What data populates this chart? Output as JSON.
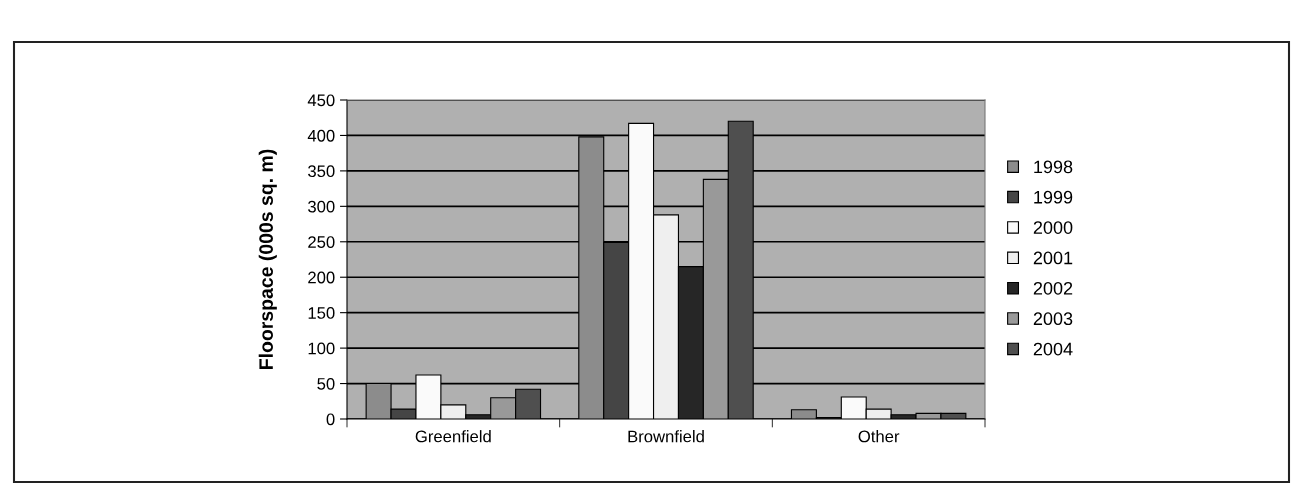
{
  "chart_data": {
    "type": "bar",
    "ylabel": "Floorspace (000s sq. m)",
    "categories": [
      "Greenfield",
      "Brownfield",
      "Other"
    ],
    "series": [
      {
        "name": "1998",
        "color": "#8c8c8c",
        "values": [
          50,
          398,
          13
        ]
      },
      {
        "name": "1999",
        "color": "#454545",
        "values": [
          14,
          249,
          2
        ]
      },
      {
        "name": "2000",
        "color": "#fafafa",
        "values": [
          62,
          417,
          31
        ]
      },
      {
        "name": "2001",
        "color": "#efefef",
        "values": [
          20,
          288,
          14
        ]
      },
      {
        "name": "2002",
        "color": "#262626",
        "values": [
          6,
          215,
          6
        ]
      },
      {
        "name": "2003",
        "color": "#999999",
        "values": [
          30,
          338,
          8
        ]
      },
      {
        "name": "2004",
        "color": "#4f4f4f",
        "values": [
          42,
          420,
          8
        ]
      }
    ],
    "ylim": [
      0,
      450
    ],
    "yticks": [
      0,
      50,
      100,
      150,
      200,
      250,
      300,
      350,
      400,
      450
    ],
    "grid": "y",
    "legend": "right"
  }
}
